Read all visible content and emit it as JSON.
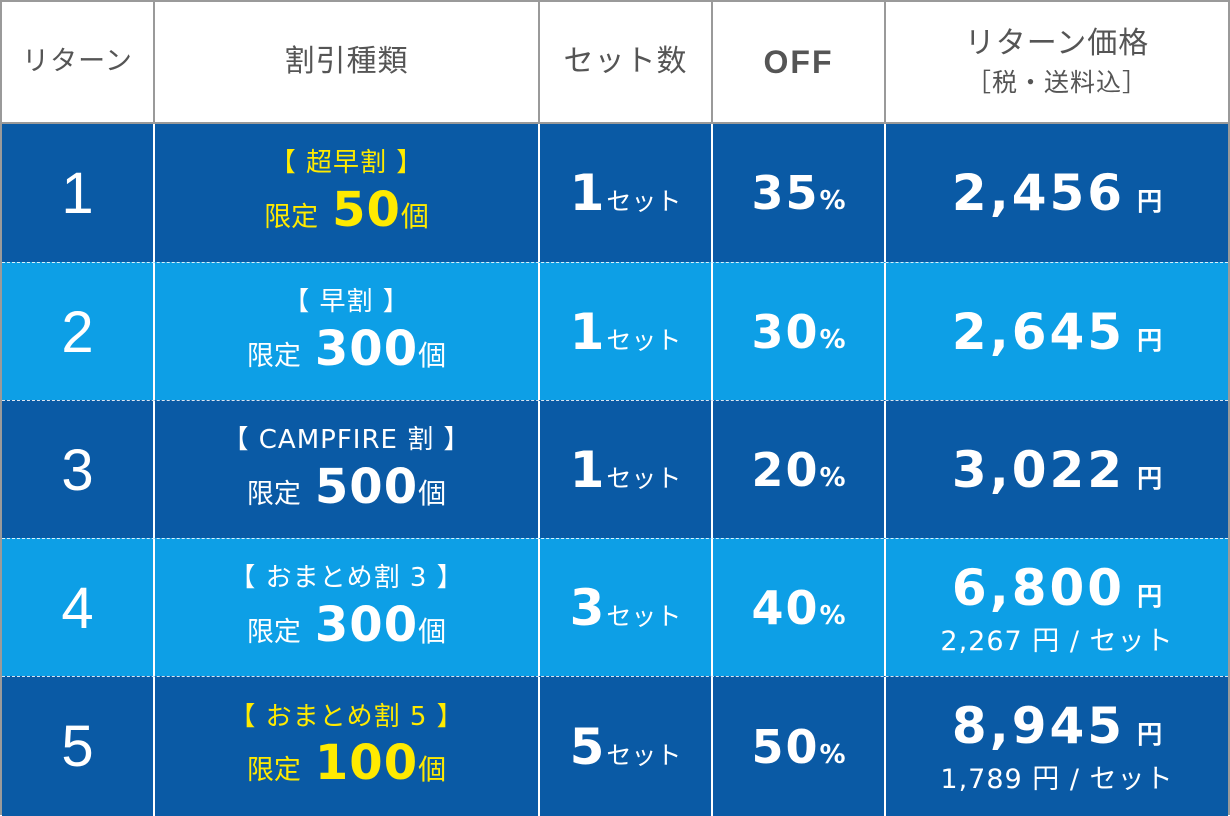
{
  "header": {
    "col_return": "リターン",
    "col_discount_type": "割引種類",
    "col_sets": "セット数",
    "col_off": "OFF",
    "col_price": "リターン価格",
    "col_price_note": "［税・送料込］"
  },
  "rows": [
    {
      "number": "1",
      "discount_name": "【 超早割 】",
      "limit_label": "限定",
      "limit_count": "50",
      "limit_unit": "個",
      "sets_count": "1",
      "sets_unit": "セット",
      "off_value": "35",
      "off_unit": "%",
      "price": "2,456",
      "price_unit": "円",
      "per_set": ""
    },
    {
      "number": "2",
      "discount_name": "【 早割 】",
      "limit_label": "限定",
      "limit_count": "300",
      "limit_unit": "個",
      "sets_count": "1",
      "sets_unit": "セット",
      "off_value": "30",
      "off_unit": "%",
      "price": "2,645",
      "price_unit": "円",
      "per_set": ""
    },
    {
      "number": "3",
      "discount_name": "【 CAMPFIRE 割 】",
      "limit_label": "限定",
      "limit_count": "500",
      "limit_unit": "個",
      "sets_count": "1",
      "sets_unit": "セット",
      "off_value": "20",
      "off_unit": "%",
      "price": "3,022",
      "price_unit": "円",
      "per_set": ""
    },
    {
      "number": "4",
      "discount_name": "【 おまとめ割 3 】",
      "limit_label": "限定",
      "limit_count": "300",
      "limit_unit": "個",
      "sets_count": "3",
      "sets_unit": "セット",
      "off_value": "40",
      "off_unit": "%",
      "price": "6,800",
      "price_unit": "円",
      "per_set": "2,267 円 / セット"
    },
    {
      "number": "5",
      "discount_name": "【 おまとめ割 5 】",
      "limit_label": "限定",
      "limit_count": "100",
      "limit_unit": "個",
      "sets_count": "5",
      "sets_unit": "セット",
      "off_value": "50",
      "off_unit": "%",
      "price": "8,945",
      "price_unit": "円",
      "per_set": "1,789 円 / セット"
    }
  ],
  "colors": {
    "dark_row": "#0a5aa5",
    "light_row": "#0d9fe6",
    "highlight_yellow": "#ffea00",
    "header_text": "#555555",
    "border_gray": "#9a9a9a"
  }
}
